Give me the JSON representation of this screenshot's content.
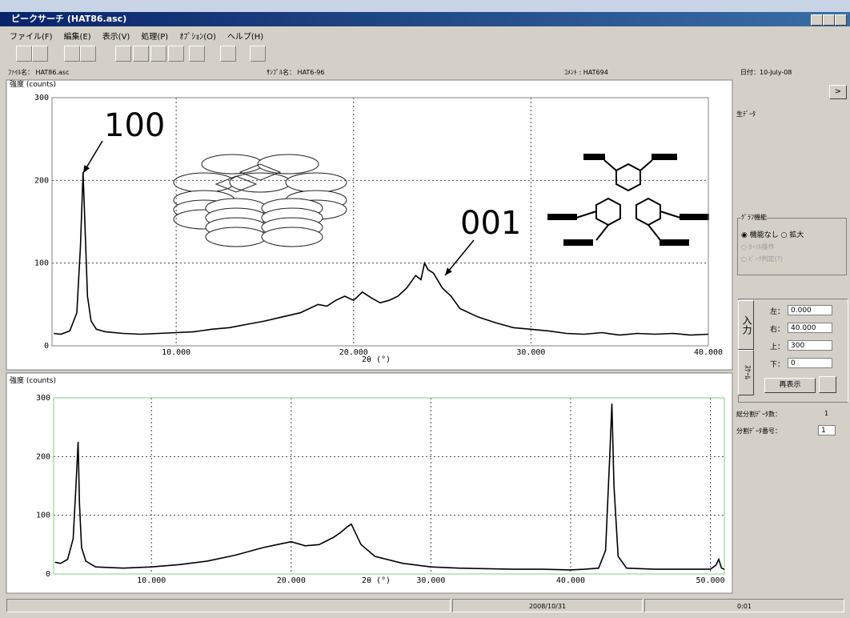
{
  "window": {
    "title": "ピークサーチ (HAT86.asc)"
  },
  "menu": [
    "ファイル(F)",
    "編集(E)",
    "表示(V)",
    "処理(P)",
    "ｵﾌﾟｼｮﾝ(O)",
    "ヘルプ(H)"
  ],
  "info": {
    "file_label": "ﾌｧｲﾙ名：",
    "file": "HAT86.asc",
    "sample_label": "ｻﾝﾌﾟﾙ名：",
    "sample": "HAT6-96",
    "comment_label": "ｺﾒﾝﾄ",
    "comment": ": HAT694",
    "date_label": "日付：",
    "date": "10-July-08"
  },
  "charts": [
    {
      "type": "line",
      "y_label": "強度 (counts)",
      "x_label": "2θ (°)",
      "annotations": [
        "100",
        "001"
      ],
      "x": [
        3.1,
        3.5,
        4.0,
        4.4,
        4.6,
        4.75,
        4.85,
        5.0,
        5.2,
        5.5,
        6,
        7,
        8,
        9,
        10,
        11,
        12,
        13,
        14,
        15,
        16,
        17,
        17.5,
        18,
        18.5,
        19,
        19.5,
        20,
        20.5,
        21,
        21.5,
        22,
        22.5,
        23,
        23.5,
        23.8,
        24,
        24.2,
        24.5,
        25,
        25.5,
        26,
        27,
        28,
        29,
        30,
        31,
        32,
        33,
        34,
        35,
        36,
        37,
        38,
        39,
        40
      ],
      "series": [
        {
          "color": "#000000",
          "values": [
            15,
            14,
            18,
            40,
            120,
            210,
            150,
            60,
            30,
            20,
            17,
            15,
            14,
            15,
            16,
            17,
            20,
            22,
            26,
            30,
            35,
            40,
            45,
            50,
            48,
            55,
            60,
            55,
            65,
            58,
            52,
            55,
            60,
            70,
            85,
            80,
            100,
            92,
            88,
            70,
            60,
            45,
            35,
            28,
            22,
            20,
            18,
            15,
            14,
            16,
            13,
            15,
            14,
            15,
            13,
            14
          ]
        }
      ],
      "xlim": [
        3,
        40
      ],
      "ylim": [
        0,
        300
      ],
      "xticks": [
        {
          "value": 10,
          "label": "10.000"
        },
        {
          "value": 20,
          "label": "20.000"
        },
        {
          "value": 30,
          "label": "30.000"
        },
        {
          "value": 40,
          "label": "40.000"
        }
      ],
      "yticks": [
        0,
        100,
        200,
        300
      ],
      "grid": true
    },
    {
      "type": "line",
      "y_label": "強度 (counts)",
      "x_label": "2θ (°)",
      "annotations": [],
      "x": [
        3.1,
        3.5,
        4.0,
        4.4,
        4.6,
        4.75,
        4.85,
        5.0,
        5.3,
        6,
        8,
        10,
        12,
        14,
        16,
        18,
        19,
        20,
        21,
        22,
        23,
        23.5,
        24,
        24.3,
        24.6,
        25,
        26,
        28,
        30,
        32,
        34,
        36,
        38,
        40,
        41,
        42,
        42.5,
        42.8,
        42.95,
        43.1,
        43.4,
        44,
        46,
        48,
        50,
        50.4,
        50.6,
        50.8,
        51
      ],
      "series": [
        {
          "color": "#000000",
          "values": [
            20,
            18,
            25,
            60,
            150,
            225,
            120,
            45,
            22,
            12,
            10,
            12,
            16,
            22,
            32,
            45,
            50,
            55,
            48,
            50,
            62,
            70,
            80,
            85,
            70,
            50,
            30,
            18,
            12,
            10,
            9,
            8,
            8,
            7,
            8,
            10,
            40,
            200,
            290,
            150,
            30,
            10,
            8,
            8,
            8,
            15,
            25,
            10,
            8
          ]
        }
      ],
      "xlim": [
        3,
        51
      ],
      "ylim": [
        0,
        300
      ],
      "xticks": [
        {
          "value": 10,
          "label": "10.000"
        },
        {
          "value": 20,
          "label": "20.000"
        },
        {
          "value": 30,
          "label": "30.000"
        },
        {
          "value": 40,
          "label": "40.000"
        },
        {
          "value": 50,
          "label": "50.000"
        }
      ],
      "yticks": [
        0,
        100,
        200,
        300
      ],
      "grid": true
    }
  ],
  "side": {
    "next": ">",
    "raw_data": "生ﾃﾞｰﾀ",
    "group_title": "ｸﾞﾗﾌ機能",
    "radio_none": "機能なし",
    "radio_zoom": "拡大",
    "radio_cursor": "ｶｰｿﾙ操作",
    "radio_peak": "ﾋﾟｰｸ判定(?)",
    "tab_input": "入力",
    "tab_scale": "ｽｹｰﾙ",
    "left_label": "左：",
    "left": "0.000",
    "right_label": "右：",
    "right": "40.000",
    "top_label": "上：",
    "top": "300",
    "bottom_label": "下：",
    "bottom": "0",
    "redraw": "再表示",
    "total_label": "総分割ﾃﾞｰﾀ数：",
    "total": "1",
    "index_label": "分割ﾃﾞｰﾀ番号：",
    "index": "1"
  },
  "status": {
    "date": "2008/10/31",
    "time": "0:01"
  }
}
